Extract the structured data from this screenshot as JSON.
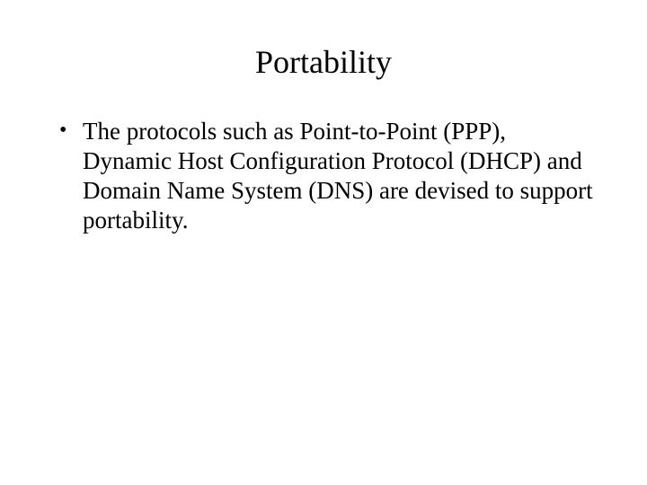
{
  "colors": {
    "background": "#ffffff",
    "text": "#000000"
  },
  "typography": {
    "family": "Times New Roman",
    "title_fontsize_pt": 36,
    "body_fontsize_pt": 27,
    "line_height": 1.22
  },
  "slide": {
    "title": "Portability",
    "bullets": [
      "The protocols such as Point-to-Point (PPP), Dynamic Host Configuration Protocol (DHCP) and Domain Name System (DNS) are devised to support portability."
    ]
  }
}
